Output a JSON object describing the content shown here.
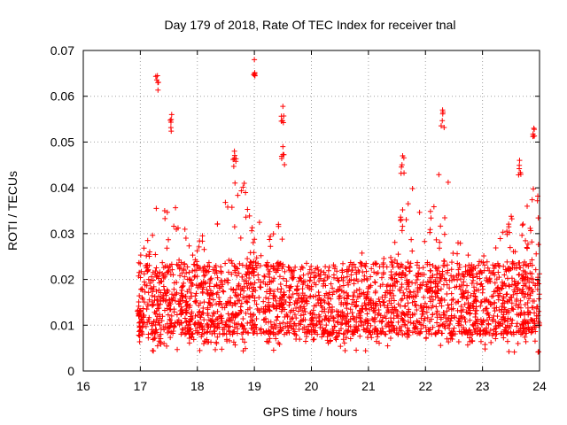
{
  "chart_data": {
    "type": "scatter",
    "title": "Day 179 of 2018, Rate Of TEC Index for receiver tnal",
    "xlabel": "GPS time / hours",
    "ylabel": "ROTI / TECUs",
    "xlim": [
      16,
      24
    ],
    "ylim": [
      0,
      0.07
    ],
    "xticks": [
      "16",
      "17",
      "18",
      "19",
      "20",
      "21",
      "22",
      "23",
      "24"
    ],
    "yticks": [
      "0",
      "0.01",
      "0.02",
      "0.03",
      "0.04",
      "0.05",
      "0.06",
      "0.07"
    ],
    "grid": true,
    "marker": "+",
    "series": [
      {
        "name": "ROTI",
        "color": "#ff0000",
        "x_range": [
          16.95,
          24.0
        ],
        "typical_band": [
          0.006,
          0.025
        ],
        "peaks": [
          {
            "x": 17.3,
            "y": 0.0645
          },
          {
            "x": 17.55,
            "y": 0.056
          },
          {
            "x": 18.65,
            "y": 0.048
          },
          {
            "x": 19.0,
            "y": 0.068
          },
          {
            "x": 19.5,
            "y": 0.0578
          },
          {
            "x": 19.5,
            "y": 0.049
          },
          {
            "x": 21.6,
            "y": 0.047
          },
          {
            "x": 22.3,
            "y": 0.057
          },
          {
            "x": 23.65,
            "y": 0.046
          },
          {
            "x": 23.9,
            "y": 0.053
          }
        ]
      }
    ]
  }
}
